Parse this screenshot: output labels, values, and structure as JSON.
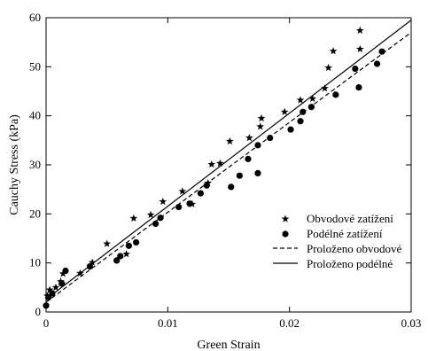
{
  "chart_data": {
    "type": "scatter",
    "title": "",
    "xlabel": "Green Strain",
    "ylabel": "Cauchy Stress (kPa)",
    "xlim": [
      0,
      0.03
    ],
    "ylim": [
      0,
      60
    ],
    "x_ticks": [
      0,
      0.01,
      0.02,
      0.03
    ],
    "x_tick_labels": [
      "0",
      "0.01",
      "0.02",
      "0.03"
    ],
    "y_ticks": [
      0,
      10,
      20,
      30,
      40,
      50,
      60
    ],
    "y_tick_labels": [
      "0",
      "10",
      "20",
      "30",
      "40",
      "50",
      "60"
    ],
    "grid": false,
    "legend_position": "bottom-right",
    "legend": [
      {
        "label": "Obvodové zatížení",
        "marker": "star"
      },
      {
        "label": "Podélné zatížení",
        "marker": "circle"
      },
      {
        "label": "Proloženo obvodové",
        "marker": "dashed-line"
      },
      {
        "label": "Proloženo podélné",
        "marker": "solid-line"
      }
    ],
    "series": [
      {
        "name": "Obvodové zatížení",
        "marker": "star",
        "points": [
          [
            0.0001,
            3.3
          ],
          [
            0.0003,
            4.5
          ],
          [
            0.0008,
            5.0
          ],
          [
            0.0012,
            6.2
          ],
          [
            0.0014,
            7.8
          ],
          [
            0.0028,
            7.9
          ],
          [
            0.0038,
            10.1
          ],
          [
            0.005,
            13.9
          ],
          [
            0.0066,
            11.8
          ],
          [
            0.0072,
            19.1
          ],
          [
            0.0086,
            19.8
          ],
          [
            0.0096,
            22.5
          ],
          [
            0.0112,
            24.6
          ],
          [
            0.012,
            22.0
          ],
          [
            0.0133,
            26.3
          ],
          [
            0.0136,
            30.1
          ],
          [
            0.0143,
            30.3
          ],
          [
            0.0151,
            34.8
          ],
          [
            0.0167,
            35.5
          ],
          [
            0.0176,
            37.8
          ],
          [
            0.0177,
            39.5
          ],
          [
            0.0196,
            40.8
          ],
          [
            0.0209,
            43.2
          ],
          [
            0.0219,
            43.5
          ],
          [
            0.0229,
            45.6
          ],
          [
            0.0232,
            49.8
          ],
          [
            0.0236,
            53.2
          ],
          [
            0.0258,
            53.6
          ],
          [
            0.0258,
            57.4
          ]
        ]
      },
      {
        "name": "Podélné zatížení",
        "marker": "circle",
        "points": [
          [
            0.0,
            1.3
          ],
          [
            0.0002,
            3.0
          ],
          [
            0.0005,
            3.8
          ],
          [
            0.0013,
            5.8
          ],
          [
            0.0016,
            8.4
          ],
          [
            0.0036,
            9.3
          ],
          [
            0.0058,
            10.5
          ],
          [
            0.0061,
            11.4
          ],
          [
            0.0068,
            13.5
          ],
          [
            0.0074,
            14.2
          ],
          [
            0.009,
            18.0
          ],
          [
            0.0094,
            19.2
          ],
          [
            0.0109,
            21.4
          ],
          [
            0.0118,
            22.1
          ],
          [
            0.0127,
            24.2
          ],
          [
            0.0132,
            25.8
          ],
          [
            0.0152,
            25.5
          ],
          [
            0.0159,
            27.8
          ],
          [
            0.0166,
            31.2
          ],
          [
            0.0174,
            28.3
          ],
          [
            0.0174,
            34.0
          ],
          [
            0.0184,
            35.5
          ],
          [
            0.0201,
            37.2
          ],
          [
            0.0209,
            38.9
          ],
          [
            0.0211,
            40.8
          ],
          [
            0.0218,
            41.8
          ],
          [
            0.0238,
            44.3
          ],
          [
            0.0254,
            49.6
          ],
          [
            0.0257,
            45.8
          ],
          [
            0.0272,
            50.6
          ],
          [
            0.0276,
            53.1
          ]
        ]
      },
      {
        "name": "Proloženo obvodové",
        "style": "dashed",
        "points": [
          [
            0.0,
            2.0
          ],
          [
            0.03,
            57.0
          ]
        ]
      },
      {
        "name": "Proloženo podélné",
        "style": "solid",
        "points": [
          [
            0.0,
            2.6
          ],
          [
            0.03,
            59.5
          ]
        ]
      }
    ]
  }
}
